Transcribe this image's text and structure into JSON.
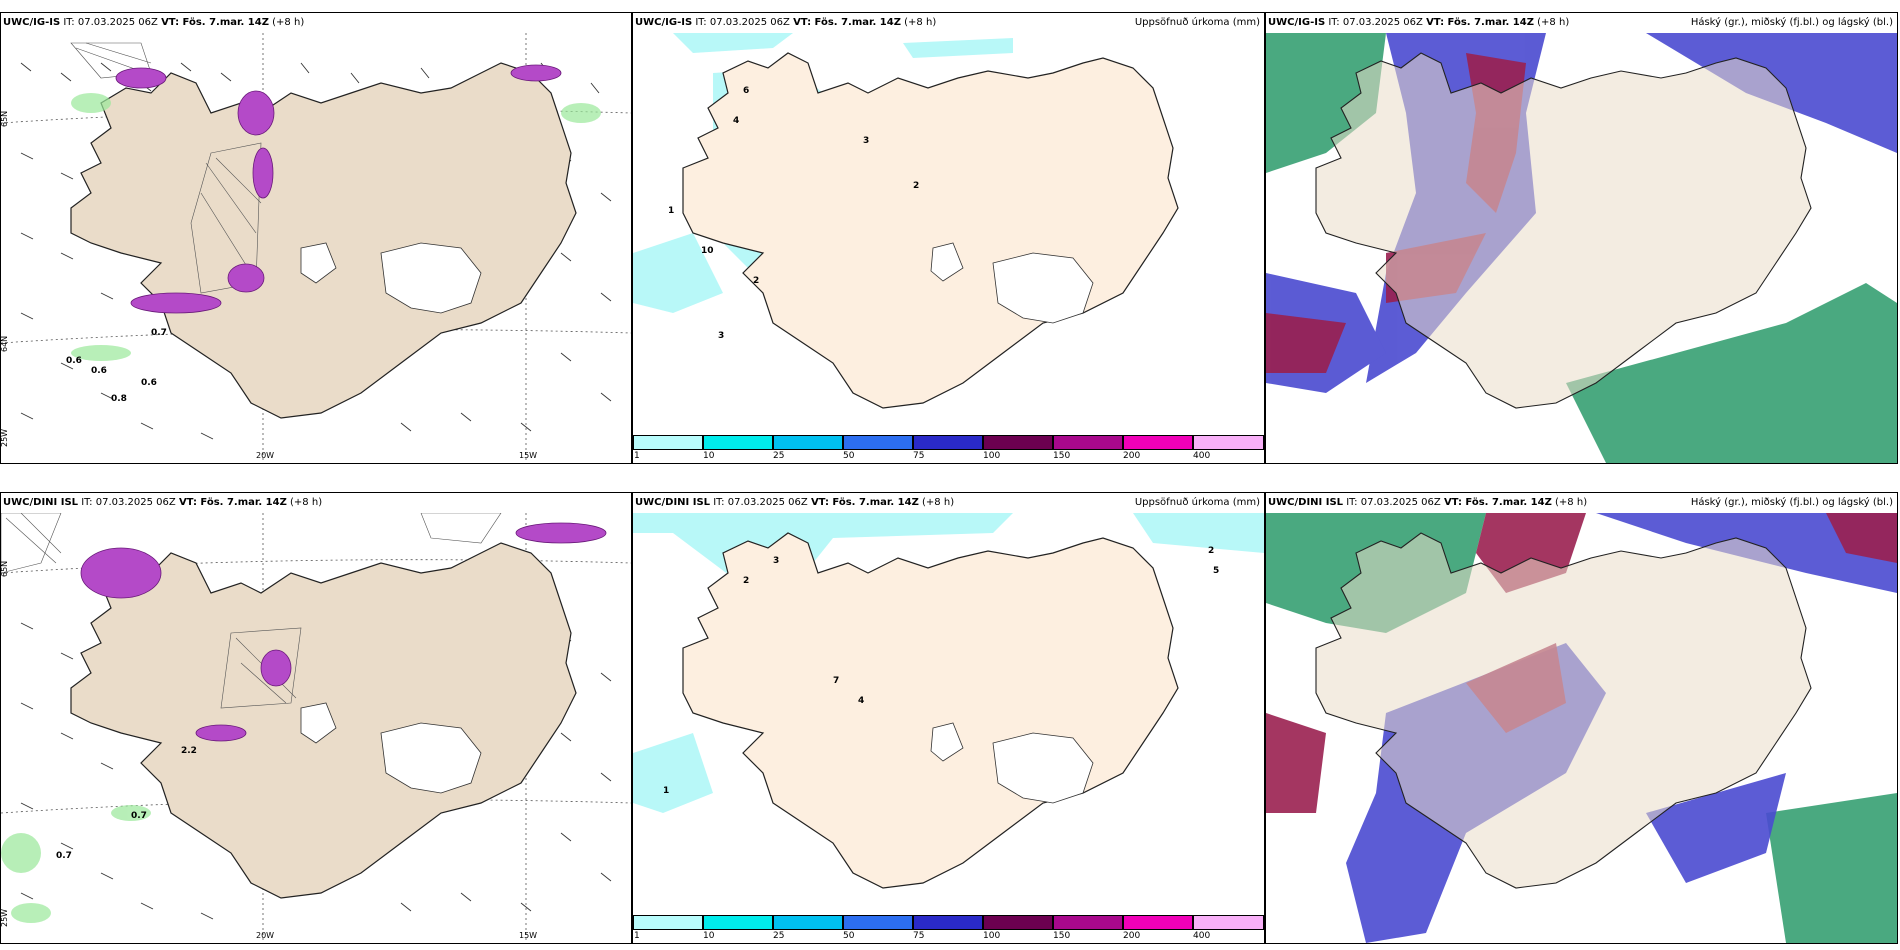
{
  "rows": [
    {
      "left": {
        "model": "UWC/IG-IS",
        "it": "IT: 07.03.2025 06Z",
        "vt": "VT: Fös. 7.mar. 14Z",
        "lead": "(+8 h)"
      },
      "mid": {
        "model": "UWC/IG-IS",
        "it": "IT: 07.03.2025 06Z",
        "vt": "VT: Fös. 7.mar. 14Z",
        "lead": "(+8 h)",
        "product": "Uppsöfnuð úrkoma (mm)"
      },
      "right": {
        "model": "UWC/IG-IS",
        "it": "IT: 07.03.2025 06Z",
        "vt": "VT: Fös. 7.mar. 14Z",
        "lead": "(+8 h)",
        "product": "Háský (gr.), miðský (fj.bl.) og lágský (bl.)"
      }
    },
    {
      "left": {
        "model": "UWC/DINI ISL",
        "it": "IT: 07.03.2025 06Z",
        "vt": "VT: Fös. 7.mar. 14Z",
        "lead": "(+8 h)"
      },
      "mid": {
        "model": "UWC/DINI ISL",
        "it": "IT: 07.03.2025 06Z",
        "vt": "VT: Fös. 7.mar. 14Z",
        "lead": "(+8 h)",
        "product": "Uppsöfnuð úrkoma (mm)"
      },
      "right": {
        "model": "UWC/DINI ISL",
        "it": "IT: 07.03.2025 06Z",
        "vt": "VT: Fös. 7.mar. 14Z",
        "lead": "(+8 h)",
        "product": "Háský (gr.), miðský (fj.bl.) og lágský (bl.)"
      }
    }
  ],
  "axes": {
    "lon1": "20W",
    "lon2": "15W",
    "lat_top": "65N",
    "lat_mid": "64N",
    "lat_bot": "25W"
  },
  "legend": {
    "ticks": [
      "1",
      "10",
      "25",
      "50",
      "75",
      "100",
      "150",
      "200",
      "400"
    ],
    "colors": [
      "#b8fcfc",
      "#00ecec",
      "#00c0f0",
      "#2c6ef0",
      "#2a2ac8",
      "#6c0050",
      "#a8088c",
      "#f000b8",
      "#f8b0f8"
    ]
  },
  "colors": {
    "land": "#eadcc9",
    "land_mid": "#fdefe0",
    "precip": "#b8f8f8",
    "snow": "#ffffff",
    "lowcloud": "#4a4ad0",
    "midcloud": "#2a9a6a",
    "highcloud": "#9a2050"
  },
  "labels": {
    "row0_left": [
      "0.6",
      "0.6",
      "0.6",
      "0.7",
      "0.8"
    ],
    "row1_left": [
      "0.7",
      "0.7",
      "2.2"
    ],
    "row0_mid": [
      "6",
      "4",
      "3",
      "10",
      "2",
      "1",
      "3",
      "2"
    ],
    "row1_mid": [
      "3",
      "2",
      "7",
      "4",
      "1",
      "2",
      "5"
    ]
  }
}
